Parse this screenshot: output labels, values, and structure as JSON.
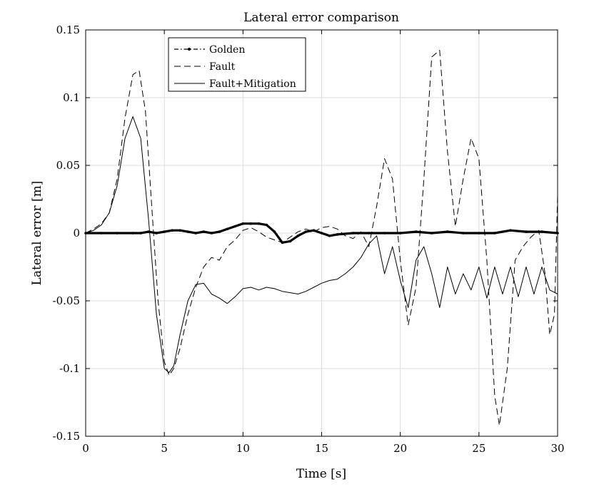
{
  "chart_data": {
    "type": "line",
    "title": "Lateral error comparison",
    "xlabel": "Time [s]",
    "ylabel": "Lateral error [m]",
    "xlim": [
      0,
      30
    ],
    "ylim": [
      -0.15,
      0.15
    ],
    "grid": true,
    "legend_position": "top-left",
    "xticks": [
      0,
      5,
      10,
      15,
      20,
      25,
      30
    ],
    "xtick_labels": [
      "0",
      "5",
      "10",
      "15",
      "20",
      "25",
      "30"
    ],
    "yticks": [
      -0.15,
      -0.1,
      -0.05,
      0,
      0.05,
      0.1,
      0.15
    ],
    "ytick_labels": [
      "-0.15",
      "-0.1",
      "-0.05",
      "0",
      "0.05",
      "0.1",
      "0.15"
    ],
    "series": [
      {
        "name": "Golden",
        "style": "dash-dot with point markers, thick",
        "color": "#000000",
        "x": [
          0,
          1,
          2,
          3,
          3.5,
          4,
          4.5,
          5,
          5.5,
          6,
          6.5,
          7,
          7.5,
          8,
          8.5,
          9,
          9.5,
          10,
          10.5,
          11,
          11.5,
          12,
          12.5,
          13,
          13.5,
          14,
          14.5,
          15,
          15.5,
          16,
          17,
          18,
          19,
          20,
          21,
          22,
          23,
          24,
          25,
          26,
          27,
          28,
          29,
          30
        ],
        "y": [
          0,
          0,
          0,
          0,
          0,
          0.001,
          0,
          0.001,
          0.002,
          0.002,
          0.001,
          0,
          0.001,
          0,
          0.001,
          0.003,
          0.005,
          0.007,
          0.007,
          0.007,
          0.006,
          0.001,
          -0.007,
          -0.006,
          -0.002,
          0.001,
          0.002,
          0,
          -0.002,
          -0.001,
          0,
          0,
          0,
          0,
          0.001,
          0,
          0.001,
          0,
          0,
          0,
          0.002,
          0.001,
          0.001,
          0
        ]
      },
      {
        "name": "Fault",
        "style": "dashed",
        "color": "#000000",
        "x": [
          0,
          0.5,
          1,
          1.5,
          2,
          2.5,
          3,
          3.4,
          3.8,
          4.2,
          4.6,
          5,
          5.3,
          5.6,
          6,
          6.5,
          7,
          7.5,
          8,
          8.5,
          9,
          9.5,
          10,
          10.5,
          11,
          11.5,
          12,
          12.5,
          13,
          13.5,
          14,
          14.5,
          15,
          15.5,
          16,
          16.5,
          17,
          17.5,
          18,
          18.5,
          19,
          19.5,
          20,
          20.5,
          21,
          21.5,
          22,
          22.5,
          23,
          23.5,
          24,
          24.5,
          25,
          25.5,
          26,
          26.3,
          26.8,
          27.3,
          27.8,
          28.3,
          28.8,
          29.2,
          29.5,
          29.8,
          30
        ],
        "y": [
          0,
          0.003,
          0.007,
          0.015,
          0.04,
          0.085,
          0.117,
          0.12,
          0.09,
          0.02,
          -0.05,
          -0.095,
          -0.105,
          -0.1,
          -0.085,
          -0.06,
          -0.04,
          -0.025,
          -0.018,
          -0.02,
          -0.01,
          -0.005,
          0.002,
          0.004,
          0.001,
          -0.003,
          -0.005,
          -0.007,
          -0.003,
          0.001,
          0.003,
          0.001,
          0.004,
          0.005,
          0.003,
          -0.002,
          -0.004,
          0.001,
          -0.01,
          0.02,
          0.055,
          0.04,
          -0.02,
          -0.068,
          -0.04,
          0.04,
          0.13,
          0.135,
          0.06,
          0.005,
          0.04,
          0.07,
          0.055,
          -0.02,
          -0.12,
          -0.142,
          -0.1,
          -0.02,
          -0.01,
          -0.003,
          0.002,
          -0.03,
          -0.075,
          -0.06,
          0.028
        ]
      },
      {
        "name": "Fault+Mitigation",
        "style": "solid, thin",
        "color": "#000000",
        "x": [
          0,
          0.5,
          1,
          1.5,
          2,
          2.5,
          3,
          3.5,
          4,
          4.5,
          5,
          5.3,
          5.6,
          6,
          6.5,
          7,
          7.5,
          8,
          8.5,
          9,
          9.5,
          10,
          10.5,
          11,
          11.5,
          12,
          12.5,
          13,
          13.5,
          14,
          14.5,
          15,
          15.5,
          16,
          16.5,
          17,
          17.5,
          18,
          18.5,
          19,
          19.5,
          20,
          20.5,
          21,
          21.5,
          22,
          22.5,
          23,
          23.5,
          24,
          24.5,
          25,
          25.5,
          26,
          26.5,
          27,
          27.5,
          28,
          28.5,
          29,
          29.5,
          30
        ],
        "y": [
          0,
          0.002,
          0.006,
          0.015,
          0.035,
          0.07,
          0.086,
          0.07,
          0.01,
          -0.06,
          -0.1,
          -0.103,
          -0.098,
          -0.075,
          -0.05,
          -0.038,
          -0.037,
          -0.045,
          -0.048,
          -0.052,
          -0.047,
          -0.041,
          -0.04,
          -0.042,
          -0.04,
          -0.041,
          -0.043,
          -0.044,
          -0.045,
          -0.043,
          -0.04,
          -0.037,
          -0.035,
          -0.034,
          -0.03,
          -0.025,
          -0.018,
          -0.008,
          -0.002,
          -0.03,
          -0.01,
          -0.035,
          -0.055,
          -0.02,
          -0.01,
          -0.03,
          -0.055,
          -0.025,
          -0.045,
          -0.03,
          -0.042,
          -0.025,
          -0.048,
          -0.025,
          -0.045,
          -0.025,
          -0.047,
          -0.025,
          -0.045,
          -0.025,
          -0.042,
          -0.045
        ]
      }
    ]
  }
}
